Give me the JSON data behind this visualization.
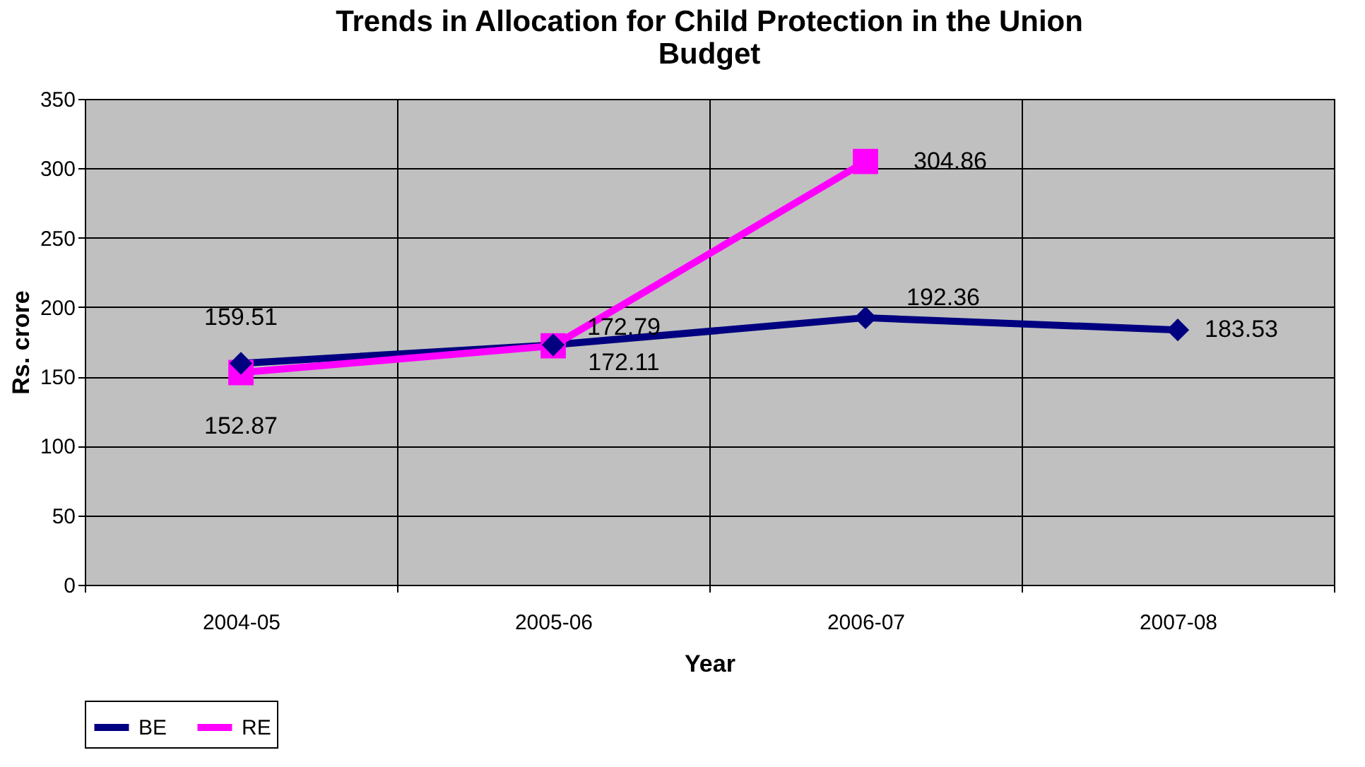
{
  "chart_data": {
    "type": "line",
    "title": "Trends in Allocation for Child Protection in the Union Budget",
    "xlabel": "Year",
    "ylabel": "Rs. crore",
    "categories": [
      "2004-05",
      "2005-06",
      "2006-07",
      "2007-08"
    ],
    "series": [
      {
        "name": "BE",
        "color": "#000080",
        "marker": "diamond",
        "values": [
          159.51,
          172.79,
          192.36,
          183.53
        ]
      },
      {
        "name": "RE",
        "color": "#ff00ff",
        "marker": "square",
        "values": [
          152.87,
          172.11,
          304.86,
          null
        ]
      }
    ],
    "ylim": [
      0,
      350
    ],
    "yticks": [
      0,
      50,
      100,
      150,
      200,
      250,
      300,
      350
    ],
    "grid": true,
    "legend": "bottom",
    "data_labels": true
  }
}
